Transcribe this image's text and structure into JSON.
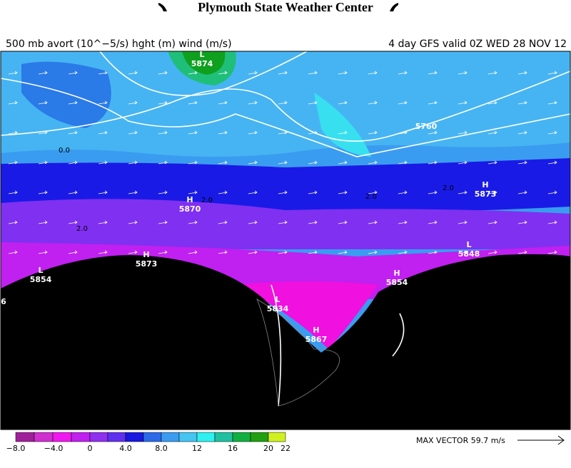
{
  "header": {
    "title": "Plymouth State Weather Center",
    "left_caption": "500 mb avort (10^−5/s) hght (m) wind (m/s)",
    "right_caption": "4 day GFS valid 0Z WED 28 NOV 12"
  },
  "map": {
    "labels": [
      {
        "symbol": "L",
        "value": "5874"
      },
      {
        "symbol": "H",
        "value": "5873"
      },
      {
        "symbol": "H",
        "value": "5870"
      },
      {
        "symbol": "L",
        "value": "5848"
      },
      {
        "symbol": "H",
        "value": "5873"
      },
      {
        "symbol": "L",
        "value": "5854"
      },
      {
        "symbol": "H",
        "value": "5854"
      },
      {
        "symbol": "L",
        "value": "5834"
      },
      {
        "symbol": "H",
        "value": "5867"
      }
    ],
    "contour_labels": [
      "5760",
      "0.0",
      "2.0",
      "2.0",
      "2.0",
      "2.0",
      "6"
    ]
  },
  "colorbar": {
    "labels": [
      "−8.0",
      "−4.0",
      "0",
      "4.0",
      "8.0",
      "12",
      "16",
      "20",
      "22"
    ]
  },
  "max_vector": "MAX VECTOR  59.7 m/s"
}
